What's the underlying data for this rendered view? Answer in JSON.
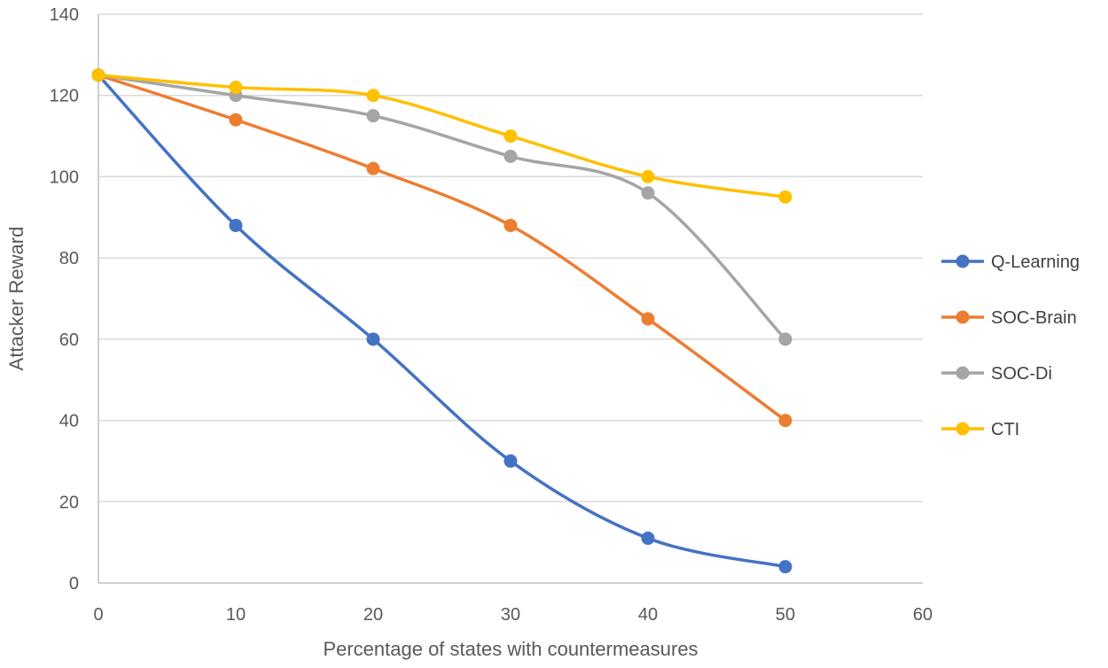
{
  "chart_data": {
    "type": "line",
    "title": "",
    "xlabel": "Percentage of states with countermeasures",
    "ylabel": "Attacker Reward",
    "xlim": [
      0,
      60
    ],
    "ylim": [
      0,
      140
    ],
    "xticks": [
      0,
      10,
      20,
      30,
      40,
      50,
      60
    ],
    "yticks": [
      0,
      20,
      40,
      60,
      80,
      100,
      120,
      140
    ],
    "grid": "horizontal",
    "legend_position": "right",
    "smooth": true,
    "series": [
      {
        "name": "Q-Learning",
        "color": "#4472c4",
        "x": [
          0,
          10,
          20,
          30,
          40,
          50
        ],
        "values": [
          125,
          88,
          60,
          30,
          11,
          4
        ]
      },
      {
        "name": "SOC-Brain",
        "color": "#ed7d31",
        "x": [
          0,
          10,
          20,
          30,
          40,
          50
        ],
        "values": [
          125,
          114,
          102,
          88,
          65,
          40
        ]
      },
      {
        "name": "SOC-Di",
        "color": "#a5a5a5",
        "x": [
          0,
          10,
          20,
          30,
          40,
          50
        ],
        "values": [
          125,
          120,
          115,
          105,
          96,
          60
        ]
      },
      {
        "name": "CTI",
        "color": "#ffc000",
        "x": [
          0,
          10,
          20,
          30,
          40,
          50
        ],
        "values": [
          125,
          122,
          120,
          110,
          100,
          95
        ]
      }
    ]
  }
}
